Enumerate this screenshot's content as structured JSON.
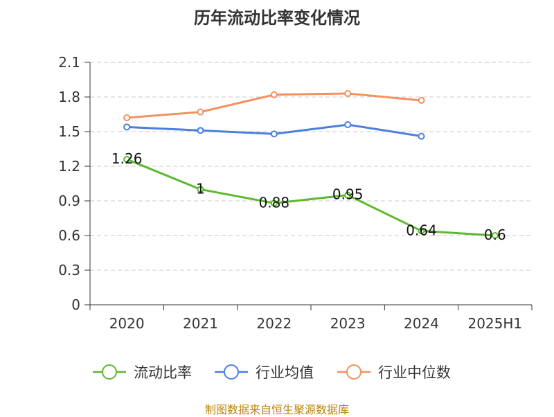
{
  "title": "历年流动比率变化情况",
  "source": "制图数据来自恒生聚源数据库",
  "chart_data": {
    "type": "line",
    "categories": [
      "2020",
      "2021",
      "2022",
      "2023",
      "2024",
      "2025H1"
    ],
    "ylim": [
      0,
      2.1
    ],
    "yticks": [
      0,
      0.3,
      0.6,
      0.9,
      1.2,
      1.5,
      1.8,
      2.1
    ],
    "ytick_labels": [
      "0",
      "0.3",
      "0.6",
      "0.9",
      "1.2",
      "1.5",
      "1.8",
      "2.1"
    ],
    "grid": true,
    "legend_position": "bottom",
    "series": [
      {
        "name": "流动比率",
        "color": "#5cb82e",
        "values": [
          1.26,
          1.0,
          0.88,
          0.95,
          0.64,
          0.6
        ],
        "labels": [
          "1.26",
          "1",
          "0.88",
          "0.95",
          "0.64",
          "0.6"
        ]
      },
      {
        "name": "行业均值",
        "color": "#4a7fdc",
        "values": [
          1.54,
          1.51,
          1.48,
          1.56,
          1.46,
          null
        ],
        "labels": []
      },
      {
        "name": "行业中位数",
        "color": "#f39060",
        "values": [
          1.62,
          1.67,
          1.82,
          1.83,
          1.77,
          null
        ],
        "labels": []
      }
    ]
  }
}
